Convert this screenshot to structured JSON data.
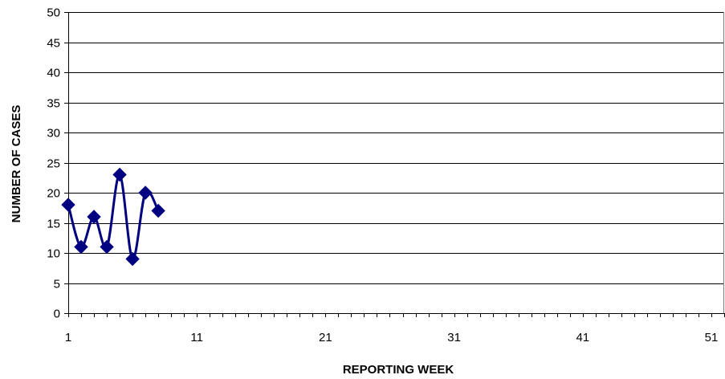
{
  "chart_data": {
    "type": "line",
    "title": "",
    "xlabel": "REPORTING WEEK",
    "ylabel": "NUMBER OF CASES",
    "xlim": [
      1,
      52
    ],
    "ylim": [
      0,
      50
    ],
    "x_ticks": [
      1,
      11,
      21,
      31,
      41,
      51
    ],
    "y_ticks": [
      0,
      5,
      10,
      15,
      20,
      25,
      30,
      35,
      40,
      45,
      50
    ],
    "grid": "horizontal",
    "legend": "none",
    "smooth": true,
    "series": [
      {
        "color": "#000080",
        "marker": "diamond",
        "x": [
          1,
          2,
          3,
          4,
          5,
          6,
          7,
          8
        ],
        "values": [
          18,
          11,
          16,
          11,
          23,
          9,
          20,
          17
        ]
      }
    ]
  }
}
